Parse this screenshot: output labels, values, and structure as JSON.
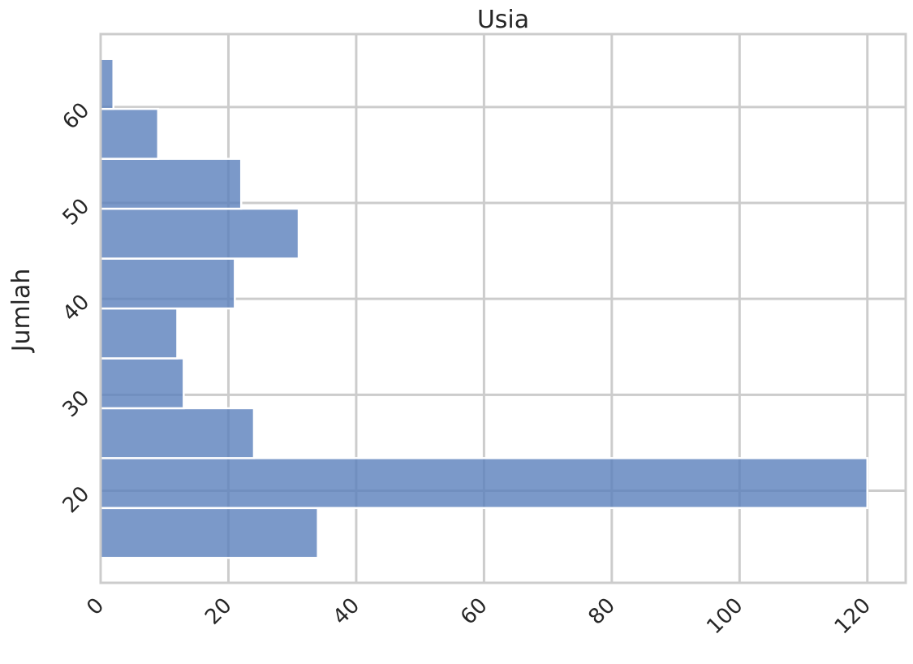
{
  "chart_data": {
    "type": "bar",
    "orientation": "horizontal",
    "title": "Usia",
    "xlabel": "",
    "ylabel": "Jumlah",
    "bin_edges": [
      13.0,
      18.2,
      23.4,
      28.6,
      33.8,
      39.0,
      44.2,
      49.4,
      54.6,
      59.8,
      65.0
    ],
    "values": [
      34,
      120,
      24,
      13,
      12,
      21,
      31,
      22,
      9,
      2
    ],
    "xlim": [
      0,
      126
    ],
    "ylim": [
      10.4,
      67.6
    ],
    "x_ticks": [
      "0",
      "20",
      "40",
      "60",
      "80",
      "100",
      "120"
    ],
    "y_ticks": [
      "20",
      "30",
      "40",
      "50",
      "60"
    ],
    "grid": true,
    "bar_color": "#5a7fbb",
    "grid_color": "#cccccc",
    "axis_color": "#cccccc"
  }
}
